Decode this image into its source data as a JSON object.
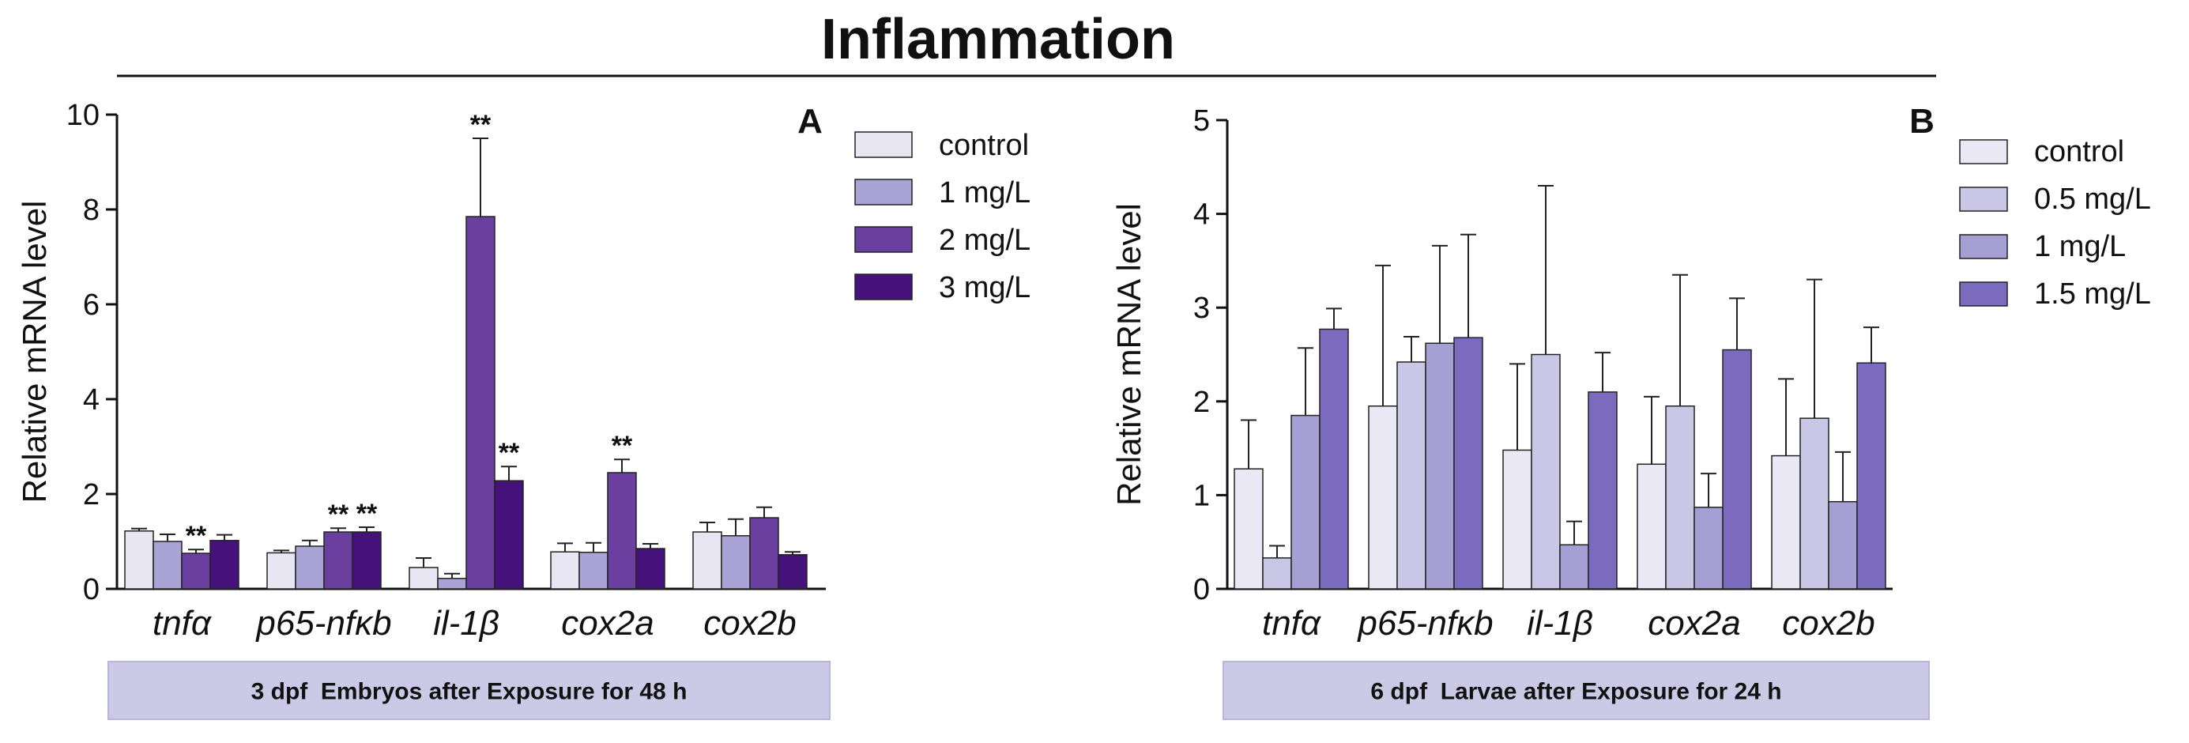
{
  "figure_title": "Inflammation",
  "chart_data": [
    {
      "type": "bar",
      "panel": "A",
      "caption": "3 dpf  Embryos after Exposure for 48 h",
      "ylabel": "Relative mRNA level",
      "ylim": [
        0,
        10
      ],
      "yticks": [
        "0",
        "2",
        "4",
        "6",
        "8",
        "10"
      ],
      "categories": [
        "tnfα",
        "p65-nfκb",
        "il-1β",
        "cox2a",
        "cox2b"
      ],
      "series": [
        {
          "name": "control",
          "color": "#e9e6f3",
          "values": [
            1.22,
            0.76,
            0.45,
            0.78,
            1.2
          ],
          "errors": [
            0.05,
            0.05,
            0.2,
            0.18,
            0.2
          ]
        },
        {
          "name": "1 mg/L",
          "color": "#a9a3d6",
          "values": [
            1.0,
            0.9,
            0.22,
            0.77,
            1.12
          ],
          "errors": [
            0.15,
            0.12,
            0.1,
            0.2,
            0.35
          ]
        },
        {
          "name": "2 mg/L",
          "color": "#6a3fa0",
          "values": [
            0.75,
            1.2,
            7.85,
            2.45,
            1.5
          ],
          "errors": [
            0.08,
            0.08,
            1.65,
            0.28,
            0.22
          ]
        },
        {
          "name": "3 mg/L",
          "color": "#45117a",
          "values": [
            1.02,
            1.2,
            2.28,
            0.85,
            0.72
          ],
          "errors": [
            0.12,
            0.1,
            0.3,
            0.1,
            0.06
          ]
        }
      ],
      "significance": [
        {
          "category": 0,
          "series": 2,
          "label": "**"
        },
        {
          "category": 1,
          "series": 2,
          "label": "**"
        },
        {
          "category": 1,
          "series": 3,
          "label": "**"
        },
        {
          "category": 2,
          "series": 2,
          "label": "**"
        },
        {
          "category": 2,
          "series": 3,
          "label": "**"
        },
        {
          "category": 3,
          "series": 2,
          "label": "**"
        }
      ],
      "legend_position": "right"
    },
    {
      "type": "bar",
      "panel": "B",
      "caption": "6 dpf  Larvae after Exposure for 24 h",
      "ylabel": "Relative mRNA  level",
      "ylim": [
        0,
        5
      ],
      "yticks": [
        "0",
        "1",
        "2",
        "3",
        "4",
        "5"
      ],
      "categories": [
        "tnfα",
        "p65-nfκb",
        "il-1β",
        "cox2a",
        "cox2b"
      ],
      "series": [
        {
          "name": "control",
          "color": "#eae8f4",
          "values": [
            1.28,
            1.95,
            1.48,
            1.33,
            1.42
          ],
          "errors": [
            0.52,
            1.5,
            0.92,
            0.72,
            0.82
          ]
        },
        {
          "name": "0.5 mg/L",
          "color": "#c9c6e6",
          "values": [
            0.33,
            2.42,
            2.5,
            1.95,
            1.82
          ],
          "errors": [
            0.13,
            0.27,
            1.8,
            1.4,
            1.48
          ]
        },
        {
          "name": "1 mg/L",
          "color": "#a59fd4",
          "values": [
            1.85,
            2.62,
            0.47,
            0.87,
            0.93
          ],
          "errors": [
            0.72,
            1.04,
            0.25,
            0.36,
            0.53
          ]
        },
        {
          "name": "1.5 mg/L",
          "color": "#7a6bbf",
          "values": [
            2.77,
            2.68,
            2.1,
            2.55,
            2.41
          ],
          "errors": [
            0.22,
            1.1,
            0.42,
            0.55,
            0.38
          ]
        }
      ],
      "significance": [],
      "legend_position": "right"
    }
  ]
}
